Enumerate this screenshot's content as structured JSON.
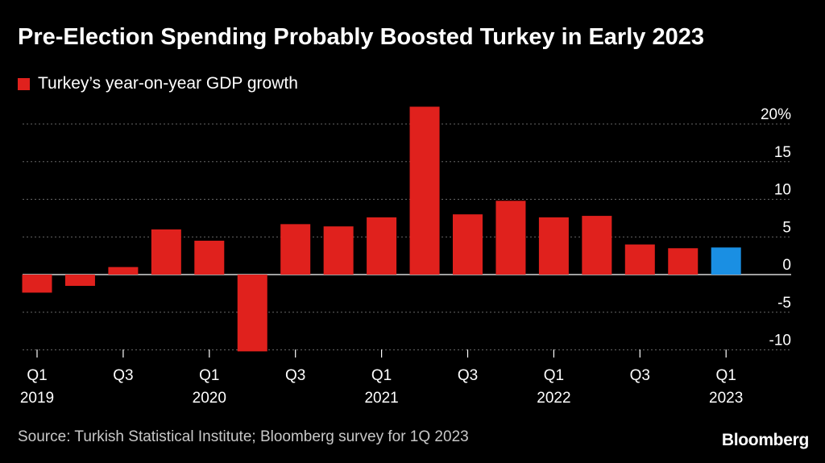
{
  "title": "Pre-Election Spending Probably Boosted Turkey in Early 2023",
  "legend": {
    "label": "Turkey’s year-on-year GDP growth",
    "color": "#e0211d"
  },
  "source": "Source: Turkish Statistical Institute; Bloomberg survey for 1Q 2023",
  "brand": "Bloomberg",
  "colors": {
    "bar": "#e0211d",
    "highlight": "#1a8fe3",
    "grid": "#666666",
    "text": "#ffffff"
  },
  "chart_data": {
    "type": "bar",
    "categories": [
      "2019 Q1",
      "2019 Q2",
      "2019 Q3",
      "2019 Q4",
      "2020 Q1",
      "2020 Q2",
      "2020 Q3",
      "2020 Q4",
      "2021 Q1",
      "2021 Q2",
      "2021 Q3",
      "2021 Q4",
      "2022 Q1",
      "2022 Q2",
      "2022 Q3",
      "2022 Q4",
      "2023 Q1"
    ],
    "values": [
      -2.4,
      -1.5,
      1.0,
      6.0,
      4.5,
      -10.2,
      6.7,
      6.4,
      7.6,
      22.3,
      8.0,
      9.8,
      7.6,
      7.8,
      4.0,
      3.5,
      3.6
    ],
    "highlight_index": 16,
    "ylim": [
      -10,
      20
    ],
    "yticks": [
      {
        "value": 20,
        "label": "20%"
      },
      {
        "value": 15,
        "label": "15"
      },
      {
        "value": 10,
        "label": "10"
      },
      {
        "value": 5,
        "label": "5"
      },
      {
        "value": 0,
        "label": "0"
      },
      {
        "value": -5,
        "label": "-5"
      },
      {
        "value": -10,
        "label": "-10"
      }
    ],
    "xticks": [
      {
        "index": 0,
        "label": "Q1",
        "year": "2019"
      },
      {
        "index": 2,
        "label": "Q3",
        "year": ""
      },
      {
        "index": 4,
        "label": "Q1",
        "year": "2020"
      },
      {
        "index": 6,
        "label": "Q3",
        "year": ""
      },
      {
        "index": 8,
        "label": "Q1",
        "year": "2021"
      },
      {
        "index": 10,
        "label": "Q3",
        "year": ""
      },
      {
        "index": 12,
        "label": "Q1",
        "year": "2022"
      },
      {
        "index": 14,
        "label": "Q3",
        "year": ""
      },
      {
        "index": 16,
        "label": "Q1",
        "year": "2023"
      }
    ],
    "title": "Pre-Election Spending Probably Boosted Turkey in Early 2023",
    "xlabel": "",
    "ylabel": ""
  }
}
